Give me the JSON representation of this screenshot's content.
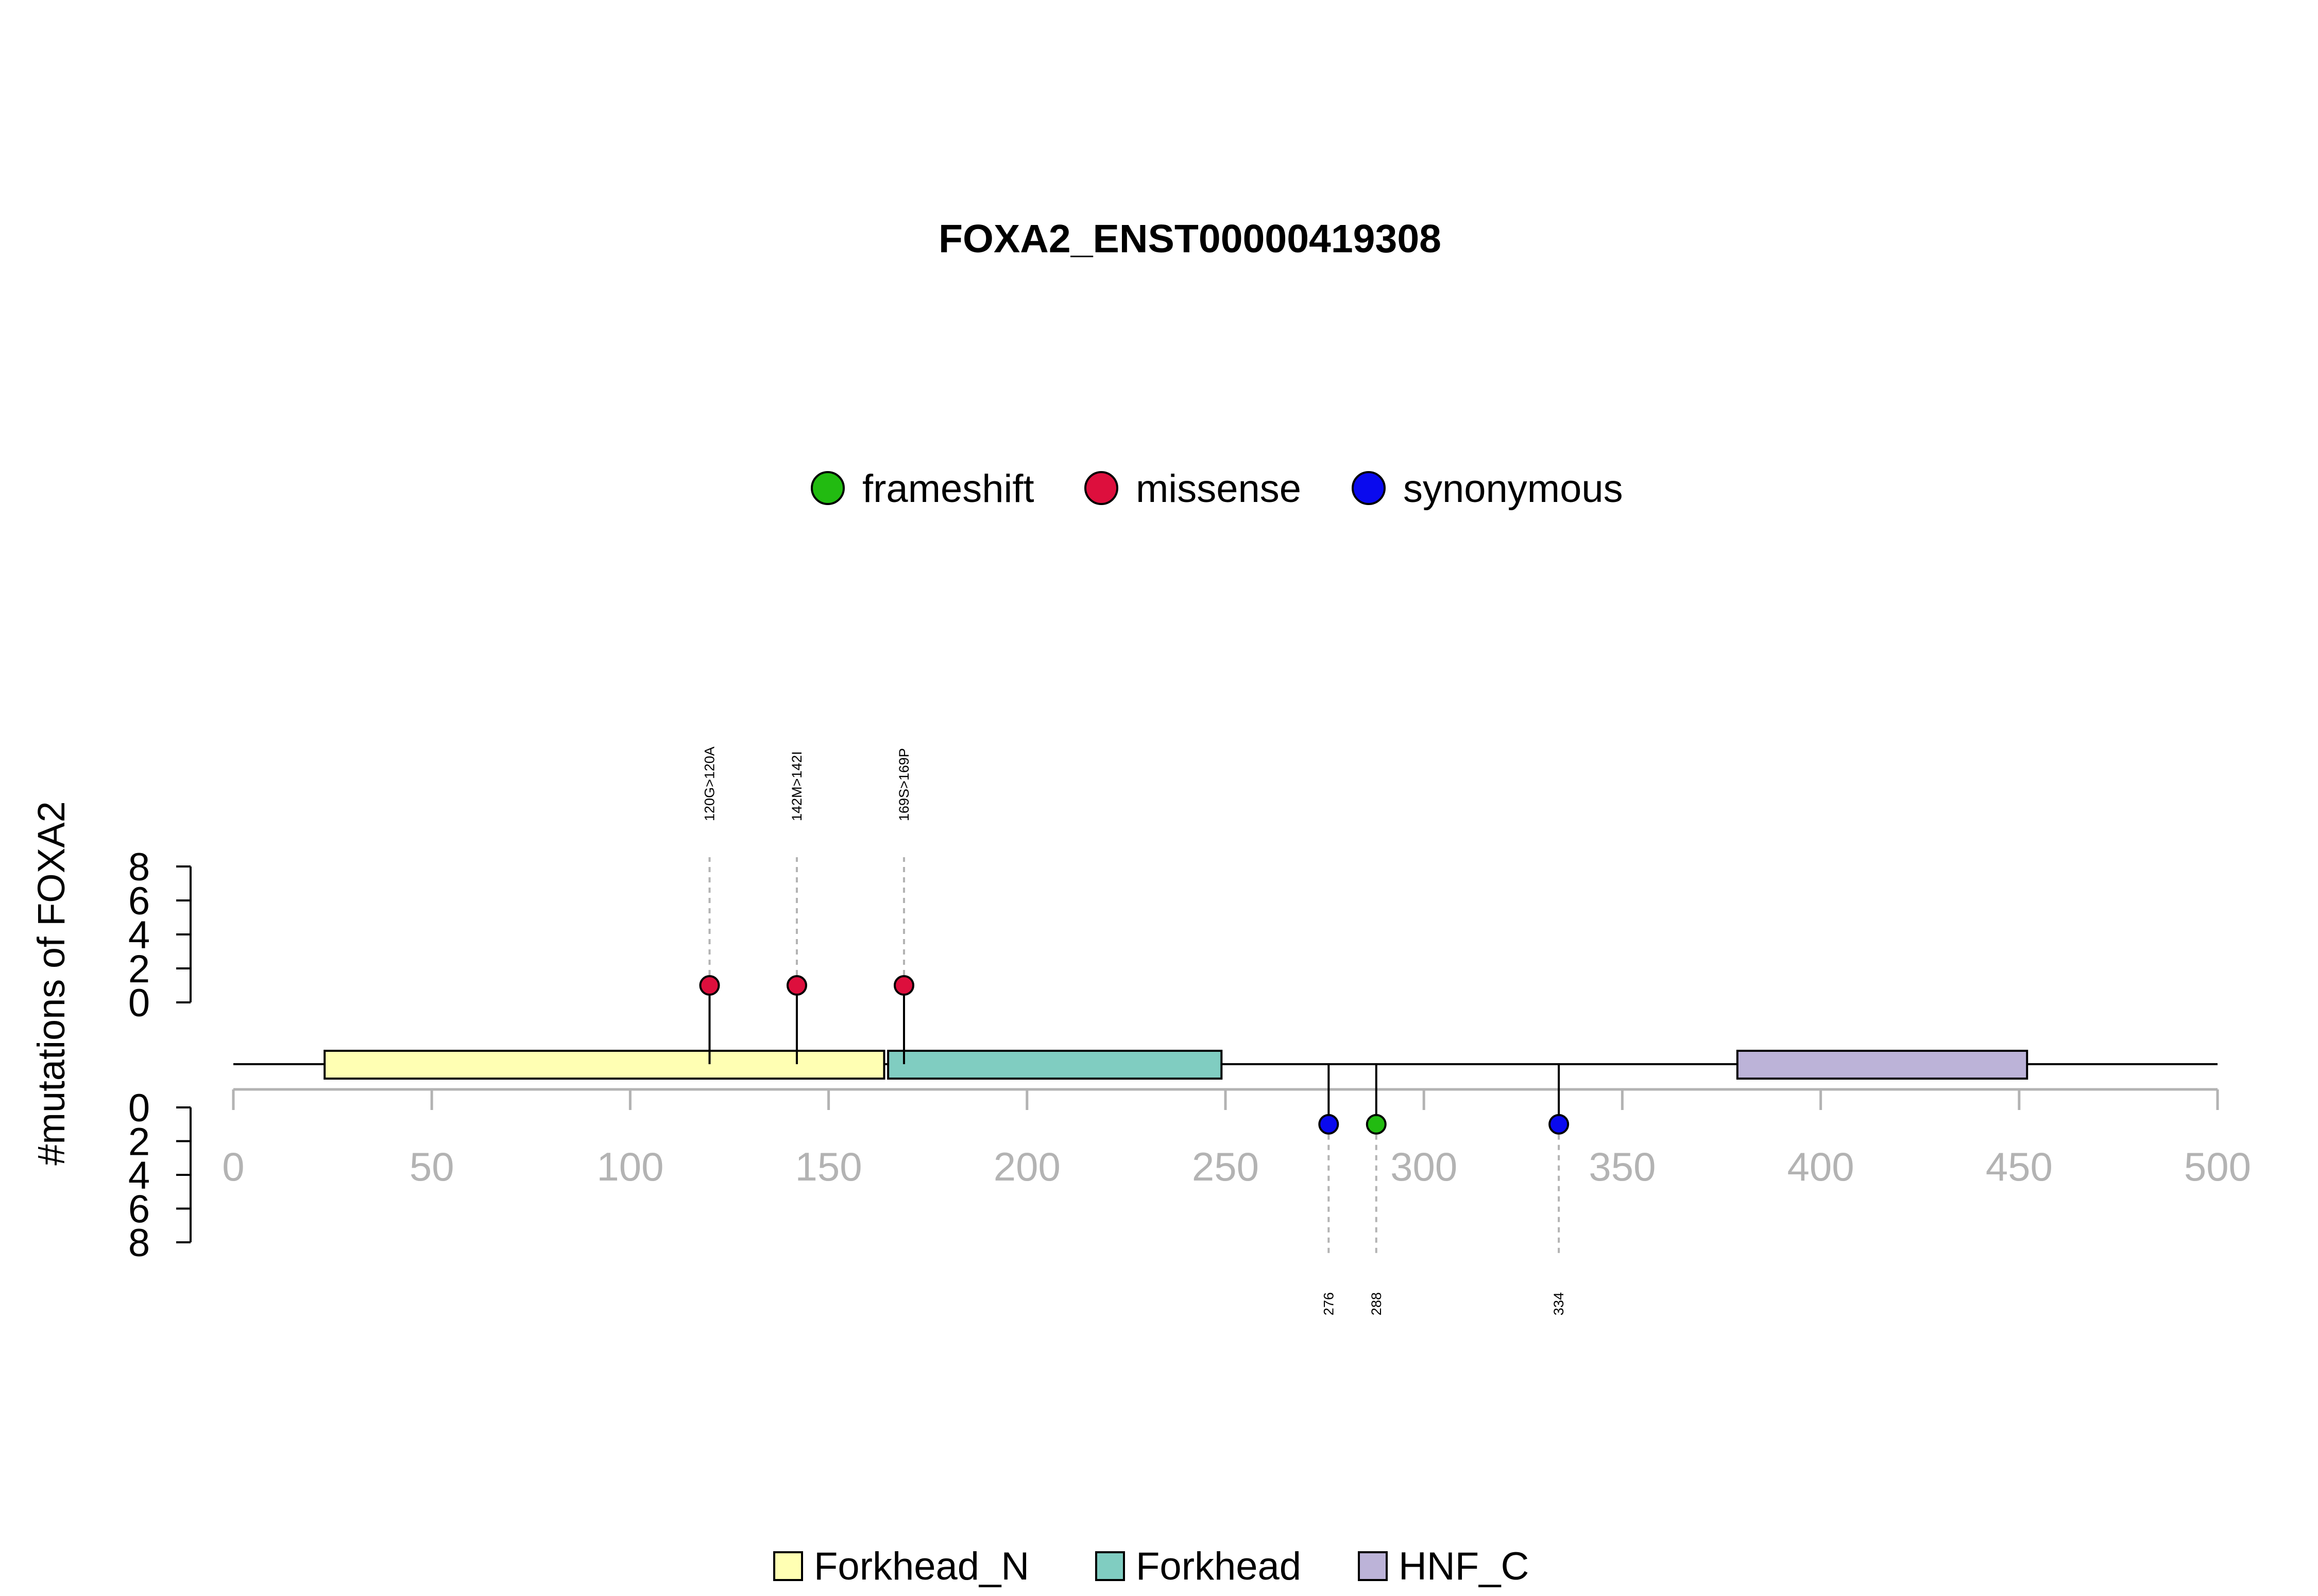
{
  "chart_data": {
    "type": "lollipop",
    "title": "FOXA2_ENST00000419308",
    "ylabel": "#mutations of FOXA2",
    "xlim": [
      0,
      500
    ],
    "x_ticks": [
      0,
      50,
      100,
      150,
      200,
      250,
      300,
      350,
      400,
      450,
      500
    ],
    "upper_ylim": [
      0,
      8
    ],
    "upper_y_ticks": [
      0,
      2,
      4,
      6,
      8
    ],
    "lower_ylim": [
      0,
      8
    ],
    "lower_y_ticks": [
      0,
      2,
      4,
      6,
      8
    ],
    "mutation_types": [
      {
        "name": "frameshift",
        "color": "#22bb11"
      },
      {
        "name": "missense",
        "color": "#dd0f3d"
      },
      {
        "name": "synonymous",
        "color": "#0a0aee"
      }
    ],
    "mutations": [
      {
        "position": 120,
        "count": 1,
        "type": "missense",
        "label": "120G>120A",
        "strand": "upper"
      },
      {
        "position": 142,
        "count": 1,
        "type": "missense",
        "label": "142M>142I",
        "strand": "upper"
      },
      {
        "position": 169,
        "count": 1,
        "type": "missense",
        "label": "169S>169P",
        "strand": "upper"
      },
      {
        "position": 276,
        "count": 1,
        "type": "synonymous",
        "label": "276",
        "strand": "lower"
      },
      {
        "position": 288,
        "count": 1,
        "type": "frameshift",
        "label": "288",
        "strand": "lower"
      },
      {
        "position": 334,
        "count": 1,
        "type": "synonymous",
        "label": "334",
        "strand": "lower"
      }
    ],
    "domains": [
      {
        "name": "Forkhead_N",
        "start": 23,
        "end": 164,
        "color": "#ffffb3"
      },
      {
        "name": "Forkhead",
        "start": 165,
        "end": 249,
        "color": "#80cdc1"
      },
      {
        "name": "HNF_C",
        "start": 379,
        "end": 452,
        "color": "#bcb3d8"
      }
    ],
    "legend_position": "top-center",
    "domain_legend_position": "bottom-center"
  }
}
